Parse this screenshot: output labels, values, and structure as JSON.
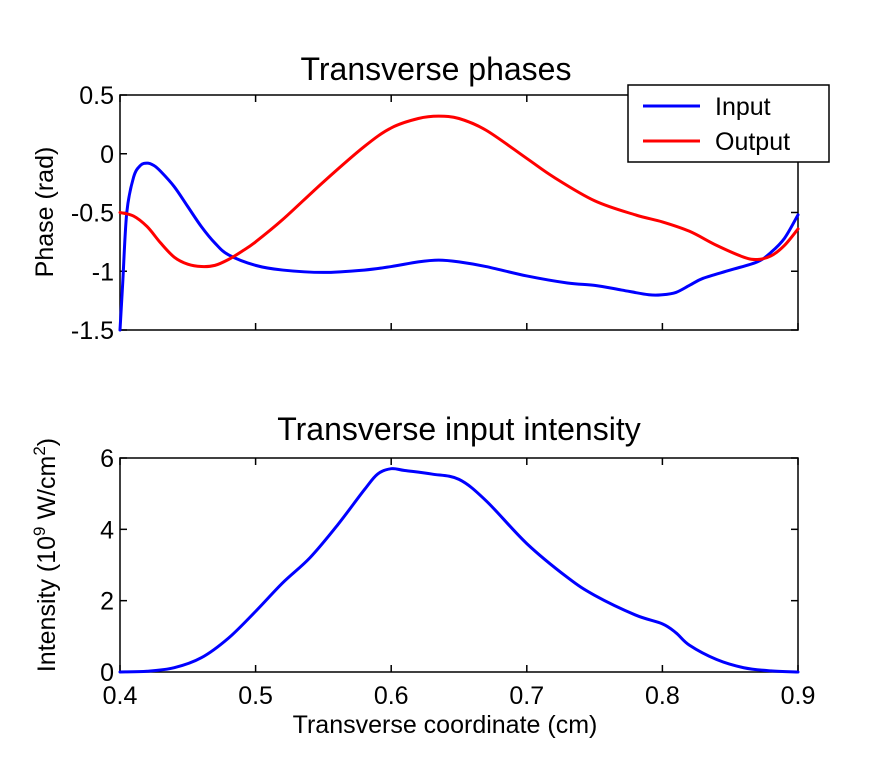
{
  "chart_data": [
    {
      "type": "line",
      "title": "Transverse phases",
      "xlabel": "",
      "ylabel": "Phase (rad)",
      "xlim": [
        0.4,
        0.9
      ],
      "ylim": [
        -1.5,
        0.5
      ],
      "x_ticks": [
        0.4,
        0.5,
        0.6,
        0.7,
        0.8,
        0.9
      ],
      "x_tick_labels_shown": false,
      "y_ticks": [
        -1.5,
        -1,
        -0.5,
        0,
        0.5
      ],
      "y_tick_labels": [
        "-1.5",
        "-1",
        "-0.5",
        "0",
        "0.5"
      ],
      "grid": false,
      "legend": {
        "placement": "top-right",
        "entries": [
          "Input",
          "Output"
        ]
      },
      "series": [
        {
          "name": "Input",
          "color": "#0000ff",
          "x": [
            0.4,
            0.402,
            0.405,
            0.41,
            0.415,
            0.42,
            0.425,
            0.43,
            0.44,
            0.45,
            0.46,
            0.47,
            0.48,
            0.5,
            0.52,
            0.55,
            0.58,
            0.6,
            0.62,
            0.635,
            0.65,
            0.67,
            0.7,
            0.73,
            0.75,
            0.77,
            0.79,
            0.8,
            0.81,
            0.82,
            0.83,
            0.85,
            0.87,
            0.88,
            0.89,
            0.9
          ],
          "y": [
            -1.5,
            -1.1,
            -0.5,
            -0.2,
            -0.1,
            -0.08,
            -0.1,
            -0.15,
            -0.28,
            -0.45,
            -0.62,
            -0.76,
            -0.86,
            -0.95,
            -0.99,
            -1.01,
            -0.99,
            -0.96,
            -0.92,
            -0.905,
            -0.92,
            -0.96,
            -1.04,
            -1.1,
            -1.12,
            -1.16,
            -1.2,
            -1.2,
            -1.18,
            -1.12,
            -1.06,
            -0.99,
            -0.92,
            -0.84,
            -0.72,
            -0.52
          ]
        },
        {
          "name": "Output",
          "color": "#ff0000",
          "x": [
            0.4,
            0.41,
            0.42,
            0.43,
            0.44,
            0.45,
            0.46,
            0.47,
            0.48,
            0.49,
            0.5,
            0.52,
            0.55,
            0.58,
            0.6,
            0.62,
            0.635,
            0.65,
            0.67,
            0.7,
            0.72,
            0.75,
            0.78,
            0.8,
            0.82,
            0.84,
            0.86,
            0.87,
            0.88,
            0.89,
            0.9
          ],
          "y": [
            -0.5,
            -0.53,
            -0.62,
            -0.76,
            -0.88,
            -0.94,
            -0.96,
            -0.95,
            -0.9,
            -0.83,
            -0.75,
            -0.56,
            -0.24,
            0.06,
            0.22,
            0.3,
            0.32,
            0.3,
            0.2,
            -0.04,
            -0.2,
            -0.4,
            -0.52,
            -0.58,
            -0.66,
            -0.78,
            -0.88,
            -0.9,
            -0.87,
            -0.78,
            -0.64
          ]
        }
      ]
    },
    {
      "type": "line",
      "title": "Transverse input intensity",
      "xlabel": "Transverse coordinate (cm)",
      "ylabel_prefix": "Intensity (10",
      "ylabel_exp1": "9",
      "ylabel_mid": " W/cm",
      "ylabel_exp2": "2",
      "ylabel_suffix": ")",
      "xlim": [
        0.4,
        0.9
      ],
      "ylim": [
        0,
        6
      ],
      "x_ticks": [
        0.4,
        0.5,
        0.6,
        0.7,
        0.8,
        0.9
      ],
      "x_tick_labels": [
        "0.4",
        "0.5",
        "0.6",
        "0.7",
        "0.8",
        "0.9"
      ],
      "y_ticks": [
        0,
        2,
        4,
        6
      ],
      "y_tick_labels": [
        "0",
        "2",
        "4",
        "6"
      ],
      "grid": false,
      "series": [
        {
          "color": "#0000ff",
          "x": [
            0.4,
            0.42,
            0.44,
            0.46,
            0.48,
            0.5,
            0.52,
            0.54,
            0.56,
            0.58,
            0.59,
            0.6,
            0.61,
            0.63,
            0.65,
            0.67,
            0.7,
            0.73,
            0.75,
            0.78,
            0.8,
            0.81,
            0.82,
            0.84,
            0.86,
            0.88,
            0.9
          ],
          "y": [
            0.0,
            0.02,
            0.12,
            0.4,
            0.95,
            1.7,
            2.5,
            3.2,
            4.1,
            5.1,
            5.55,
            5.7,
            5.65,
            5.55,
            5.4,
            4.8,
            3.6,
            2.65,
            2.15,
            1.6,
            1.35,
            1.1,
            0.75,
            0.35,
            0.12,
            0.03,
            0.0
          ]
        }
      ]
    }
  ]
}
